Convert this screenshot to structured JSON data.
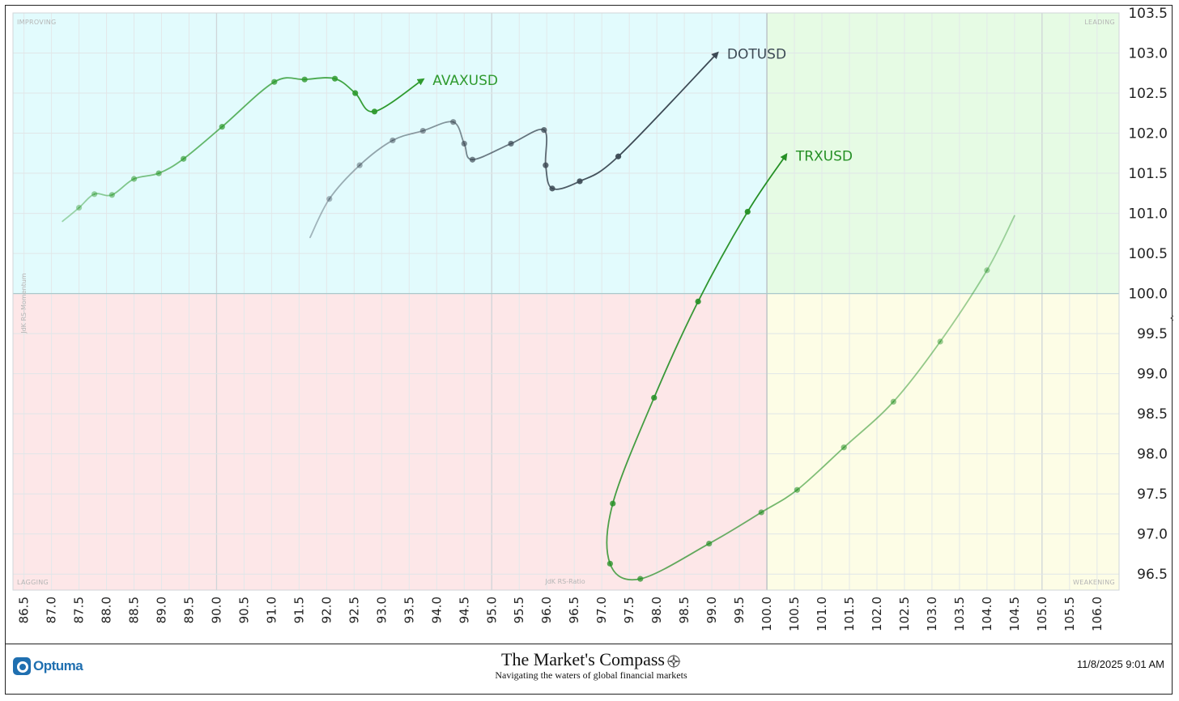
{
  "chart_data": {
    "type": "scatter",
    "title": "",
    "xlabel": "JdK RS-Ratio",
    "ylabel": "JdK RS-Momentum",
    "xlim": [
      86.3,
      106.4
    ],
    "ylim": [
      96.3,
      103.5
    ],
    "x_ticks": [
      "86.5",
      "87.0",
      "87.5",
      "88.0",
      "88.5",
      "89.0",
      "89.5",
      "90.0",
      "90.5",
      "91.0",
      "91.5",
      "92.0",
      "92.5",
      "93.0",
      "93.5",
      "94.0",
      "94.5",
      "95.0",
      "95.5",
      "96.0",
      "96.5",
      "97.0",
      "97.5",
      "98.0",
      "98.5",
      "99.0",
      "99.5",
      "100.0",
      "100.5",
      "101.0",
      "101.5",
      "102.0",
      "102.5",
      "103.0",
      "103.5",
      "104.0",
      "104.5",
      "105.0",
      "105.5",
      "106.0"
    ],
    "y_ticks": [
      "96.5",
      "97.0",
      "97.5",
      "98.0",
      "98.5",
      "99.0",
      "99.5",
      "100.0",
      "100.5",
      "101.0",
      "101.5",
      "102.0",
      "102.5",
      "103.0",
      "103.5"
    ],
    "center": [
      100,
      100
    ],
    "grid": true,
    "quadrants": {
      "top_left": {
        "label": "IMPROVING",
        "color": "#e2fbfd"
      },
      "top_right": {
        "label": "LEADING",
        "color": "#e6fbe4"
      },
      "bottom_left": {
        "label": "LAGGING",
        "color": "#fde7e8"
      },
      "bottom_right": {
        "label": "WEAKENING",
        "color": "#fdfde6"
      }
    },
    "series": [
      {
        "name": "AVAXUSD",
        "color": "#2e9a2e",
        "points": [
          [
            87.2,
            100.9
          ],
          [
            87.5,
            101.07
          ],
          [
            87.78,
            101.24
          ],
          [
            88.1,
            101.23
          ],
          [
            88.5,
            101.43
          ],
          [
            88.95,
            101.5
          ],
          [
            89.4,
            101.68
          ],
          [
            90.1,
            102.08
          ],
          [
            91.05,
            102.64
          ],
          [
            91.6,
            102.67
          ],
          [
            92.15,
            102.68
          ],
          [
            92.52,
            102.5
          ],
          [
            92.87,
            102.27
          ],
          [
            93.75,
            102.67
          ]
        ],
        "arrow": true
      },
      {
        "name": "DOTUSD",
        "color": "#3d4a55",
        "points": [
          [
            91.7,
            100.7
          ],
          [
            92.05,
            101.18
          ],
          [
            92.6,
            101.6
          ],
          [
            93.2,
            101.91
          ],
          [
            93.75,
            102.03
          ],
          [
            94.3,
            102.14
          ],
          [
            94.5,
            101.87
          ],
          [
            94.65,
            101.67
          ],
          [
            95.35,
            101.87
          ],
          [
            95.95,
            102.04
          ],
          [
            95.98,
            101.6
          ],
          [
            96.1,
            101.31
          ],
          [
            96.6,
            101.4
          ],
          [
            97.3,
            101.71
          ],
          [
            99.1,
            103.0
          ]
        ],
        "arrow": true
      },
      {
        "name": "TRXUSD",
        "color": "#259025",
        "points": [
          [
            104.5,
            100.97
          ],
          [
            104.0,
            100.29
          ],
          [
            103.15,
            99.4
          ],
          [
            102.3,
            98.65
          ],
          [
            101.4,
            98.08
          ],
          [
            100.55,
            97.55
          ],
          [
            99.9,
            97.27
          ],
          [
            98.95,
            96.88
          ],
          [
            97.7,
            96.44
          ],
          [
            97.15,
            96.63
          ],
          [
            97.2,
            97.38
          ],
          [
            97.95,
            98.7
          ],
          [
            98.75,
            99.9
          ],
          [
            99.65,
            101.02
          ],
          [
            100.35,
            101.73
          ]
        ],
        "arrow": true
      }
    ]
  },
  "footer": {
    "logo_text": "Optuma",
    "brand_title": "The Market's Compass",
    "brand_subtitle": "Navigating the waters of global financial markets",
    "timestamp": "11/8/2025 9:01 AM"
  },
  "icons": {
    "logo": "optuma-logo-icon",
    "compass": "compass-rose-icon"
  }
}
